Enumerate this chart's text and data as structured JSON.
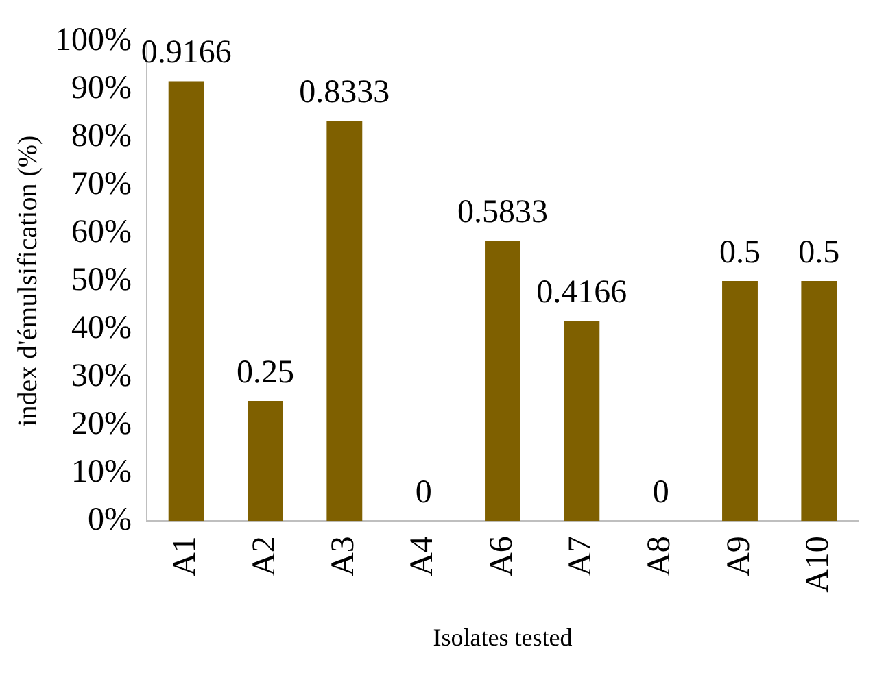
{
  "chart_data": {
    "type": "bar",
    "xlabel": "Isolates tested",
    "ylabel": "index d'émulsification (%)",
    "categories": [
      "A1",
      "A2",
      "A3",
      "A4",
      "A6",
      "A7",
      "A8",
      "A9",
      "A10"
    ],
    "values": [
      0.9166,
      0.25,
      0.8333,
      0,
      0.5833,
      0.4166,
      0,
      0.5,
      0.5
    ],
    "color": "#7f6000",
    "data_labels": true,
    "grid": false,
    "legend": false,
    "ylim": [
      0,
      1
    ],
    "yticks": [
      {
        "value": 0,
        "label": "0%"
      },
      {
        "value": 0.1,
        "label": "10%"
      },
      {
        "value": 0.2,
        "label": "20%"
      },
      {
        "value": 0.3,
        "label": "30%"
      },
      {
        "value": 0.4,
        "label": "40%"
      },
      {
        "value": 0.5,
        "label": "50%"
      },
      {
        "value": 0.6,
        "label": "60%"
      },
      {
        "value": 0.7,
        "label": "70%"
      },
      {
        "value": 0.8,
        "label": "80%"
      },
      {
        "value": 0.9,
        "label": "90%"
      },
      {
        "value": 1,
        "label": "100%"
      }
    ]
  }
}
